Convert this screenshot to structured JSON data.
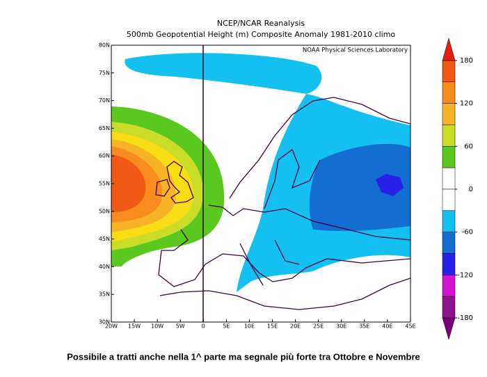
{
  "title": "NCEP/NCAR Reanalysis",
  "subtitle": "500mb Geopotential Height (m) Composite Anomaly 1981-2010 climo",
  "credit": "NOAA Physical Sciences Laboratory",
  "map": {
    "lon_labels": [
      "20W",
      "15W",
      "10W",
      "5W",
      "0",
      "5E",
      "10E",
      "15E",
      "20E",
      "25E",
      "30E",
      "35E",
      "40E",
      "45E"
    ],
    "lat_labels": [
      "80N",
      "75N",
      "70N",
      "65N",
      "60N",
      "55N",
      "50N",
      "45N",
      "40N",
      "35N",
      "30N"
    ]
  },
  "colorbar": {
    "levels": [
      180,
      120,
      60,
      0,
      -60,
      -120,
      -180
    ],
    "colors": [
      "#f05a14",
      "#f88c1e",
      "#f8b428",
      "#c8dc28",
      "#5ac81e",
      "#ffffff",
      "#ffffff",
      "#14c0f0",
      "#146ed2",
      "#2820e6",
      "#d214d2",
      "#8c148c"
    ],
    "over_color": "#e61e14",
    "under_color": "#780078"
  },
  "caption": "Possibile a tratti anche nella 1^ parte ma segnale più forte tra Ottobre e Novembre"
}
